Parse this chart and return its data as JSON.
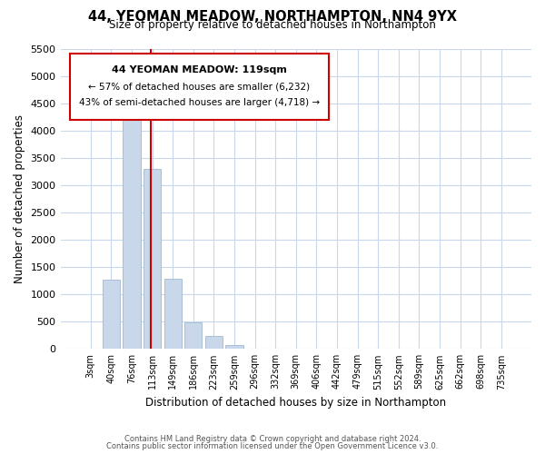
{
  "title": "44, YEOMAN MEADOW, NORTHAMPTON, NN4 9YX",
  "subtitle": "Size of property relative to detached houses in Northampton",
  "xlabel": "Distribution of detached houses by size in Northampton",
  "ylabel": "Number of detached properties",
  "bar_color": "#c8d8ea",
  "bar_edge_color": "#a0b8d0",
  "tick_labels": [
    "3sqm",
    "40sqm",
    "76sqm",
    "113sqm",
    "149sqm",
    "186sqm",
    "223sqm",
    "259sqm",
    "296sqm",
    "332sqm",
    "369sqm",
    "406sqm",
    "442sqm",
    "479sqm",
    "515sqm",
    "552sqm",
    "589sqm",
    "625sqm",
    "662sqm",
    "698sqm",
    "735sqm"
  ],
  "bar_heights": [
    0,
    1270,
    4330,
    3300,
    1290,
    480,
    235,
    80,
    0,
    0,
    0,
    0,
    0,
    0,
    0,
    0,
    0,
    0,
    0,
    0,
    0
  ],
  "ylim": [
    0,
    5500
  ],
  "yticks": [
    0,
    500,
    1000,
    1500,
    2000,
    2500,
    3000,
    3500,
    4000,
    4500,
    5000,
    5500
  ],
  "vline_index": 3,
  "vline_color": "#cc0000",
  "annotation_title": "44 YEOMAN MEADOW: 119sqm",
  "annotation_line1": "← 57% of detached houses are smaller (6,232)",
  "annotation_line2": "43% of semi-detached houses are larger (4,718) →",
  "annotation_box_color": "#ffffff",
  "annotation_box_edge_color": "#cc0000",
  "footer_line1": "Contains HM Land Registry data © Crown copyright and database right 2024.",
  "footer_line2": "Contains public sector information licensed under the Open Government Licence v3.0.",
  "bg_color": "#ffffff",
  "grid_color": "#c8d8ea"
}
